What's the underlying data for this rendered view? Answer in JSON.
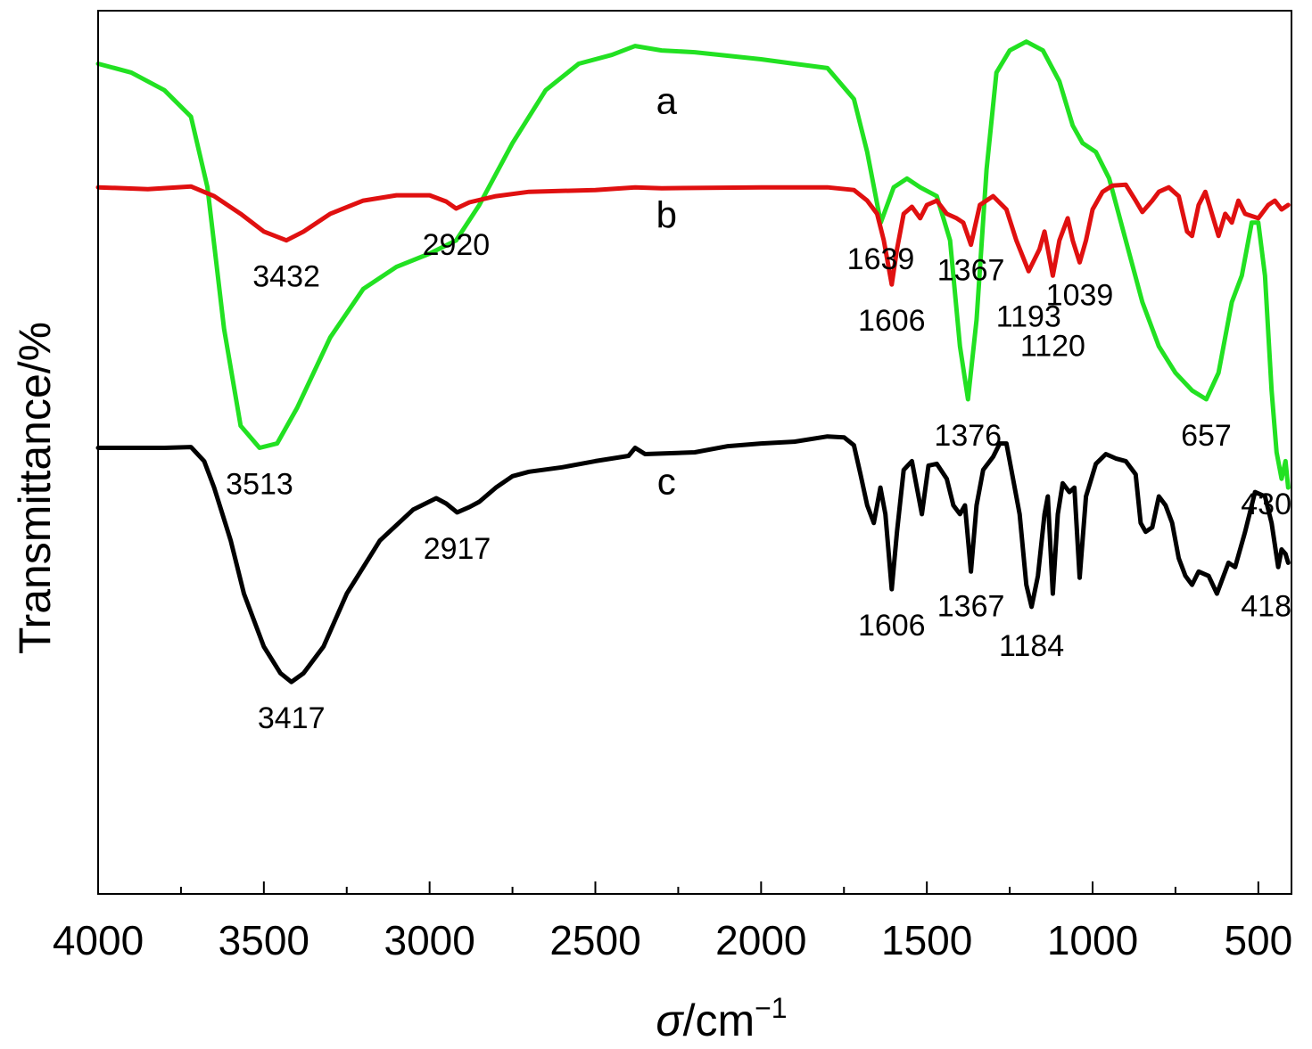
{
  "chart_data": {
    "type": "line",
    "title": "",
    "xlabel": {
      "symbol": "σ",
      "unit": "/cm",
      "exponent": "−1"
    },
    "ylabel": "Transmittance/%",
    "xlim": [
      4000,
      400
    ],
    "x_reversed": true,
    "x_ticks": [
      4000,
      3500,
      3000,
      2500,
      2000,
      1500,
      1000,
      500
    ],
    "x_tick_labels": [
      "4000",
      "3500",
      "3000",
      "2500",
      "2000",
      "1500",
      "1000",
      "500"
    ],
    "y_ticks_shown": false,
    "grid": false,
    "series": [
      {
        "name": "a",
        "color": "#22e122",
        "points": [
          [
            4000,
            94
          ],
          [
            3900,
            93
          ],
          [
            3800,
            91
          ],
          [
            3720,
            88
          ],
          [
            3670,
            80
          ],
          [
            3620,
            64
          ],
          [
            3570,
            53
          ],
          [
            3513,
            50.5
          ],
          [
            3460,
            51
          ],
          [
            3400,
            55
          ],
          [
            3300,
            63
          ],
          [
            3200,
            68.5
          ],
          [
            3100,
            71
          ],
          [
            3000,
            72.5
          ],
          [
            2920,
            74
          ],
          [
            2850,
            78
          ],
          [
            2750,
            85
          ],
          [
            2650,
            91
          ],
          [
            2550,
            94
          ],
          [
            2450,
            95
          ],
          [
            2380,
            96
          ],
          [
            2300,
            95.5
          ],
          [
            2200,
            95.3
          ],
          [
            2000,
            94.5
          ],
          [
            1900,
            94
          ],
          [
            1800,
            93.5
          ],
          [
            1720,
            90
          ],
          [
            1680,
            84
          ],
          [
            1639,
            76
          ],
          [
            1600,
            80
          ],
          [
            1560,
            81
          ],
          [
            1520,
            80
          ],
          [
            1470,
            79
          ],
          [
            1430,
            74
          ],
          [
            1400,
            62
          ],
          [
            1376,
            56
          ],
          [
            1350,
            65
          ],
          [
            1320,
            82
          ],
          [
            1290,
            93
          ],
          [
            1250,
            95.5
          ],
          [
            1200,
            96.5
          ],
          [
            1150,
            95.5
          ],
          [
            1100,
            92
          ],
          [
            1060,
            87
          ],
          [
            1030,
            85
          ],
          [
            990,
            84
          ],
          [
            950,
            81
          ],
          [
            900,
            74
          ],
          [
            850,
            67
          ],
          [
            800,
            62
          ],
          [
            750,
            59
          ],
          [
            700,
            57
          ],
          [
            657,
            56
          ],
          [
            620,
            59
          ],
          [
            580,
            67
          ],
          [
            550,
            70
          ],
          [
            520,
            76
          ],
          [
            500,
            76
          ],
          [
            480,
            70
          ],
          [
            460,
            57
          ],
          [
            445,
            50
          ],
          [
            430,
            47
          ],
          [
            418,
            49
          ],
          [
            410,
            46
          ]
        ],
        "peaks": [
          {
            "x": 3513,
            "label": "3513"
          },
          {
            "x": 1639,
            "label": "1639"
          },
          {
            "x": 1376,
            "label": "1376"
          },
          {
            "x": 657,
            "label": "657"
          },
          {
            "x": 430,
            "label": "430"
          }
        ]
      },
      {
        "name": "b",
        "color": "#e01010",
        "points": [
          [
            4000,
            80
          ],
          [
            3850,
            79.8
          ],
          [
            3720,
            80.1
          ],
          [
            3650,
            79
          ],
          [
            3570,
            77
          ],
          [
            3500,
            75
          ],
          [
            3432,
            74
          ],
          [
            3380,
            75
          ],
          [
            3300,
            77
          ],
          [
            3200,
            78.5
          ],
          [
            3100,
            79.1
          ],
          [
            3000,
            79.1
          ],
          [
            2950,
            78.4
          ],
          [
            2920,
            77.6
          ],
          [
            2880,
            78.3
          ],
          [
            2800,
            79
          ],
          [
            2700,
            79.5
          ],
          [
            2500,
            79.7
          ],
          [
            2380,
            80
          ],
          [
            2300,
            79.9
          ],
          [
            2000,
            80
          ],
          [
            1800,
            80
          ],
          [
            1720,
            79.7
          ],
          [
            1680,
            78.5
          ],
          [
            1650,
            77
          ],
          [
            1630,
            74
          ],
          [
            1606,
            69
          ],
          [
            1590,
            73
          ],
          [
            1570,
            77
          ],
          [
            1545,
            77.8
          ],
          [
            1520,
            76.5
          ],
          [
            1500,
            78
          ],
          [
            1470,
            78.5
          ],
          [
            1440,
            77
          ],
          [
            1410,
            76.5
          ],
          [
            1390,
            76
          ],
          [
            1367,
            73.5
          ],
          [
            1340,
            78
          ],
          [
            1300,
            79
          ],
          [
            1260,
            77.5
          ],
          [
            1230,
            74
          ],
          [
            1193,
            70.5
          ],
          [
            1160,
            73
          ],
          [
            1145,
            75
          ],
          [
            1120,
            70
          ],
          [
            1100,
            74
          ],
          [
            1075,
            76.5
          ],
          [
            1060,
            74
          ],
          [
            1039,
            71.5
          ],
          [
            1020,
            74
          ],
          [
            1000,
            77.5
          ],
          [
            970,
            79.5
          ],
          [
            940,
            80.2
          ],
          [
            900,
            80.3
          ],
          [
            870,
            78.5
          ],
          [
            850,
            77.2
          ],
          [
            820,
            78.5
          ],
          [
            800,
            79.5
          ],
          [
            770,
            80
          ],
          [
            740,
            79
          ],
          [
            715,
            75
          ],
          [
            700,
            74.5
          ],
          [
            680,
            78
          ],
          [
            660,
            79.5
          ],
          [
            640,
            77
          ],
          [
            620,
            74.5
          ],
          [
            600,
            77
          ],
          [
            580,
            76
          ],
          [
            560,
            78.5
          ],
          [
            540,
            77
          ],
          [
            500,
            76.5
          ],
          [
            470,
            78
          ],
          [
            450,
            78.5
          ],
          [
            430,
            77.5
          ],
          [
            410,
            78
          ]
        ],
        "peaks": [
          {
            "x": 3432,
            "label": "3432"
          },
          {
            "x": 2920,
            "label": "2920"
          },
          {
            "x": 1606,
            "label": "1606"
          },
          {
            "x": 1367,
            "label": "1367"
          },
          {
            "x": 1193,
            "label": "1193"
          },
          {
            "x": 1120,
            "label": "1120"
          },
          {
            "x": 1039,
            "label": "1039"
          }
        ]
      },
      {
        "name": "c",
        "color": "#000000",
        "points": [
          [
            4000,
            50.5
          ],
          [
            3900,
            50.5
          ],
          [
            3800,
            50.5
          ],
          [
            3720,
            50.6
          ],
          [
            3680,
            49
          ],
          [
            3650,
            46
          ],
          [
            3600,
            40
          ],
          [
            3560,
            34
          ],
          [
            3500,
            28
          ],
          [
            3450,
            25
          ],
          [
            3417,
            24
          ],
          [
            3380,
            25
          ],
          [
            3320,
            28
          ],
          [
            3250,
            34
          ],
          [
            3150,
            40
          ],
          [
            3050,
            43.5
          ],
          [
            2980,
            44.8
          ],
          [
            2950,
            44.2
          ],
          [
            2917,
            43.2
          ],
          [
            2880,
            43.8
          ],
          [
            2850,
            44.4
          ],
          [
            2800,
            46
          ],
          [
            2750,
            47.3
          ],
          [
            2700,
            47.8
          ],
          [
            2600,
            48.3
          ],
          [
            2500,
            49
          ],
          [
            2400,
            49.6
          ],
          [
            2380,
            50.5
          ],
          [
            2350,
            49.8
          ],
          [
            2200,
            50
          ],
          [
            2100,
            50.7
          ],
          [
            2000,
            51
          ],
          [
            1900,
            51.2
          ],
          [
            1800,
            51.8
          ],
          [
            1750,
            51.7
          ],
          [
            1720,
            50.8
          ],
          [
            1700,
            47.5
          ],
          [
            1680,
            44
          ],
          [
            1660,
            42
          ],
          [
            1640,
            46
          ],
          [
            1625,
            43
          ],
          [
            1606,
            34.5
          ],
          [
            1590,
            41
          ],
          [
            1570,
            48
          ],
          [
            1545,
            49
          ],
          [
            1530,
            46
          ],
          [
            1515,
            43
          ],
          [
            1495,
            48.5
          ],
          [
            1470,
            48.7
          ],
          [
            1440,
            47
          ],
          [
            1420,
            44
          ],
          [
            1400,
            43
          ],
          [
            1385,
            44
          ],
          [
            1367,
            36.5
          ],
          [
            1350,
            44
          ],
          [
            1330,
            48
          ],
          [
            1300,
            49.5
          ],
          [
            1280,
            51
          ],
          [
            1260,
            51
          ],
          [
            1240,
            47
          ],
          [
            1220,
            43
          ],
          [
            1200,
            35
          ],
          [
            1184,
            32.5
          ],
          [
            1165,
            36
          ],
          [
            1145,
            43
          ],
          [
            1135,
            45
          ],
          [
            1120,
            34
          ],
          [
            1105,
            43
          ],
          [
            1090,
            46.5
          ],
          [
            1070,
            45.5
          ],
          [
            1055,
            46
          ],
          [
            1039,
            35.8
          ],
          [
            1020,
            45
          ],
          [
            990,
            48.7
          ],
          [
            960,
            49.8
          ],
          [
            930,
            49.3
          ],
          [
            900,
            49
          ],
          [
            870,
            47.5
          ],
          [
            855,
            42
          ],
          [
            840,
            41
          ],
          [
            820,
            41.5
          ],
          [
            800,
            45
          ],
          [
            780,
            44
          ],
          [
            760,
            42
          ],
          [
            740,
            38
          ],
          [
            720,
            36
          ],
          [
            700,
            35
          ],
          [
            680,
            36.5
          ],
          [
            650,
            36
          ],
          [
            625,
            34
          ],
          [
            605,
            36
          ],
          [
            590,
            37.5
          ],
          [
            570,
            37
          ],
          [
            540,
            41
          ],
          [
            510,
            45.5
          ],
          [
            480,
            45
          ],
          [
            460,
            42
          ],
          [
            440,
            37
          ],
          [
            430,
            39
          ],
          [
            418,
            38.5
          ],
          [
            410,
            37.5
          ]
        ],
        "peaks": [
          {
            "x": 3417,
            "label": "3417"
          },
          {
            "x": 2917,
            "label": "2917"
          },
          {
            "x": 1606,
            "label": "1606"
          },
          {
            "x": 1367,
            "label": "1367"
          },
          {
            "x": 1184,
            "label": "1184"
          },
          {
            "x": 418,
            "label": "418"
          }
        ]
      }
    ]
  }
}
